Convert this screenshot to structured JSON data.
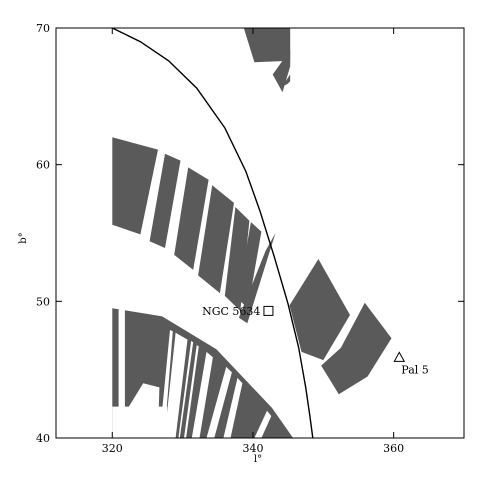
{
  "chart_data": {
    "type": "scatter",
    "xlabel": "l°",
    "ylabel": "b°",
    "xlim": [
      312,
      370
    ],
    "ylim": [
      40,
      70
    ],
    "xticks": [
      "320",
      "340",
      "360"
    ],
    "xtick_values": [
      320,
      340,
      360
    ],
    "yticks": [
      "40",
      "50",
      "60",
      "70"
    ],
    "ytick_values": [
      40,
      50,
      60,
      70
    ],
    "colors": {
      "stripes": "#5a5a5a",
      "curve": "#000000",
      "frame": "#000000"
    },
    "curve": {
      "points": [
        [
          320.0,
          70.0
        ],
        [
          324.0,
          69.0
        ],
        [
          328.0,
          67.6
        ],
        [
          332.0,
          65.6
        ],
        [
          336.0,
          62.7
        ],
        [
          339.0,
          59.5
        ],
        [
          341.0,
          56.6
        ],
        [
          343.0,
          53.3
        ],
        [
          345.0,
          49.8
        ],
        [
          346.5,
          46.6
        ],
        [
          347.5,
          43.7
        ],
        [
          348.1,
          41.6
        ],
        [
          348.5,
          40.0
        ]
      ]
    },
    "stripes": [
      {
        "polygon": [
          [
            338.7,
            70.0
          ],
          [
            345.3,
            70.0
          ],
          [
            345.3,
            67.6
          ],
          [
            340.2,
            67.5
          ]
        ]
      },
      {
        "polygon": [
          [
            342.8,
            66.6
          ],
          [
            345.3,
            68.4
          ],
          [
            345.3,
            67.2
          ],
          [
            344.2,
            65.3
          ]
        ]
      },
      {
        "polygon": [
          [
            344.1,
            65.7
          ],
          [
            345.3,
            66.6
          ],
          [
            345.3,
            66.1
          ],
          [
            344.9,
            65.9
          ]
        ]
      },
      {
        "polygon": [
          [
            320.0,
            62.0
          ],
          [
            326.5,
            61.1
          ],
          [
            324.0,
            54.9
          ],
          [
            320.0,
            55.6
          ]
        ]
      },
      {
        "polygon": [
          [
            327.5,
            60.8
          ],
          [
            329.7,
            60.3
          ],
          [
            327.5,
            53.9
          ],
          [
            325.3,
            54.4
          ]
        ]
      },
      {
        "polygon": [
          [
            330.8,
            59.8
          ],
          [
            333.7,
            58.9
          ],
          [
            331.5,
            52.3
          ],
          [
            328.8,
            53.4
          ]
        ]
      },
      {
        "polygon": [
          [
            334.2,
            58.5
          ],
          [
            337.3,
            57.2
          ],
          [
            335.3,
            50.6
          ],
          [
            332.2,
            51.9
          ]
        ]
      },
      {
        "polygon": [
          [
            337.5,
            56.9
          ],
          [
            339.5,
            55.9
          ],
          [
            338.2,
            49.3
          ],
          [
            336.0,
            50.4
          ]
        ]
      },
      {
        "polygon": [
          [
            339.7,
            55.8
          ],
          [
            341.2,
            55.1
          ],
          [
            339.3,
            49.5
          ],
          [
            337.8,
            50.2
          ]
        ]
      },
      {
        "polygon": [
          [
            341.8,
            53.7
          ],
          [
            343.2,
            55.0
          ],
          [
            339.2,
            48.4
          ],
          [
            338.0,
            48.8
          ]
        ]
      },
      {
        "polygon": [
          [
            345.2,
            49.7
          ],
          [
            349.3,
            53.1
          ],
          [
            353.8,
            49.0
          ],
          [
            350.0,
            45.7
          ],
          [
            346.9,
            46.3
          ]
        ]
      },
      {
        "polygon": [
          [
            352.5,
            46.6
          ],
          [
            355.9,
            49.9
          ],
          [
            359.7,
            47.3
          ],
          [
            356.3,
            44.5
          ],
          [
            352.2,
            43.2
          ],
          [
            349.7,
            45.3
          ]
        ]
      },
      {
        "polygon": [
          [
            320.0,
            49.5
          ],
          [
            327.1,
            48.9
          ],
          [
            334.8,
            46.5
          ],
          [
            342.7,
            42.2
          ],
          [
            345.7,
            40.0
          ],
          [
            320.0,
            40.0
          ]
        ]
      }
    ],
    "gaps": [
      {
        "polygon": [
          [
            320.9,
            40.0
          ],
          [
            320.9,
            49.4
          ],
          [
            321.8,
            49.4
          ],
          [
            321.8,
            40.0
          ]
        ]
      },
      {
        "polygon": [
          [
            326.7,
            40.0
          ],
          [
            328.2,
            47.9
          ],
          [
            328.6,
            47.8
          ],
          [
            327.4,
            40.0
          ]
        ]
      },
      {
        "polygon": [
          [
            327.4,
            40.0
          ],
          [
            329.0,
            47.7
          ],
          [
            330.7,
            47.2
          ],
          [
            329.0,
            40.0
          ]
        ]
      },
      {
        "polygon": [
          [
            329.4,
            40.0
          ],
          [
            331.2,
            47.1
          ],
          [
            331.5,
            47.0
          ],
          [
            329.6,
            40.0
          ]
        ]
      },
      {
        "polygon": [
          [
            330.2,
            40.0
          ],
          [
            332.0,
            46.8
          ],
          [
            332.3,
            46.7
          ],
          [
            330.5,
            40.0
          ]
        ]
      },
      {
        "polygon": [
          [
            331.3,
            40.0
          ],
          [
            333.4,
            46.3
          ],
          [
            334.3,
            45.9
          ],
          [
            332.4,
            40.0
          ]
        ]
      },
      {
        "polygon": [
          [
            333.4,
            40.0
          ],
          [
            336.2,
            45.2
          ],
          [
            337.0,
            44.8
          ],
          [
            334.5,
            40.0
          ]
        ]
      },
      {
        "polygon": [
          [
            335.8,
            40.0
          ],
          [
            337.8,
            44.4
          ],
          [
            338.5,
            44.0
          ],
          [
            336.8,
            40.0
          ]
        ]
      },
      {
        "polygon": [
          [
            320.0,
            40.0
          ],
          [
            320.0,
            42.3
          ],
          [
            327.8,
            42.3
          ],
          [
            327.8,
            40.0
          ]
        ]
      },
      {
        "polygon": [
          [
            322.0,
            42.0
          ],
          [
            324.4,
            44.0
          ],
          [
            326.7,
            43.7
          ],
          [
            326.6,
            42.0
          ]
        ]
      },
      {
        "polygon": [
          [
            340.2,
            40.0
          ],
          [
            342.0,
            42.0
          ],
          [
            342.6,
            41.6
          ],
          [
            341.2,
            40.0
          ]
        ]
      },
      {
        "polygon": [
          [
            323.0,
            40.3
          ],
          [
            323.7,
            41.2
          ],
          [
            324.9,
            40.5
          ],
          [
            324.2,
            40.0
          ]
        ]
      }
    ],
    "annotations": [
      {
        "label": "NGC 5634",
        "l": 342.2,
        "b": 49.3,
        "marker": "square"
      },
      {
        "label": "Pal 5",
        "l": 360.8,
        "b": 45.9,
        "marker": "triangle"
      }
    ]
  }
}
